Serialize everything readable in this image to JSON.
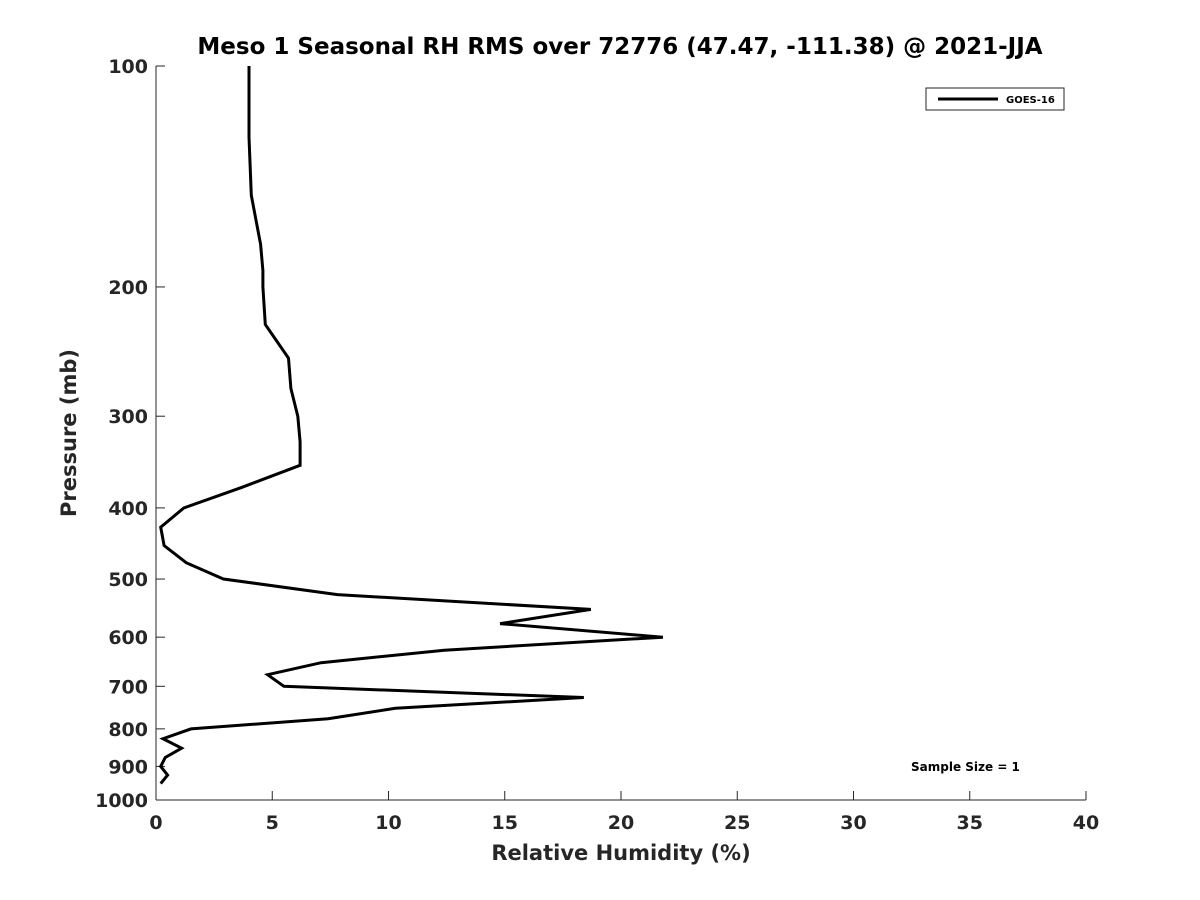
{
  "chart_data": {
    "type": "line",
    "title": "Meso 1 Seasonal RH RMS over 72776 (47.47, -111.38) @ 2021-JJA",
    "xlabel": "Relative Humidity (%)",
    "ylabel": "Pressure (mb)",
    "xlim": [
      0,
      40
    ],
    "ylim": [
      100,
      1000
    ],
    "y_scale": "log",
    "y_reversed": true,
    "x_ticks": [
      "0",
      "5",
      "10",
      "15",
      "20",
      "25",
      "30",
      "35",
      "40"
    ],
    "y_ticks": [
      "100",
      "200",
      "300",
      "400",
      "500",
      "600",
      "700",
      "800",
      "900",
      "1000"
    ],
    "grid": false,
    "legend_position": "top-right",
    "annotation": "Sample Size = 1",
    "series": [
      {
        "name": "GOES-16",
        "color": "#000000",
        "x": [
          4.0,
          4.0,
          4.1,
          4.5,
          4.6,
          4.6,
          4.7,
          5.7,
          5.8,
          6.1,
          6.2,
          6.2,
          3.7,
          1.2,
          0.2,
          0.35,
          1.3,
          2.9,
          7.8,
          18.7,
          14.8,
          21.8,
          12.4,
          7.1,
          4.8,
          5.5,
          18.4,
          10.3,
          7.4,
          1.5,
          0.3,
          1.1,
          0.4,
          0.2,
          0.5,
          0.2
        ],
        "y": [
          100,
          125,
          150,
          175,
          190,
          200,
          225,
          250,
          275,
          300,
          325,
          350,
          375,
          400,
          425,
          450,
          475,
          500,
          525,
          550,
          575,
          600,
          625,
          650,
          675,
          700,
          725,
          750,
          775,
          800,
          825,
          850,
          875,
          900,
          925,
          950
        ]
      }
    ]
  }
}
